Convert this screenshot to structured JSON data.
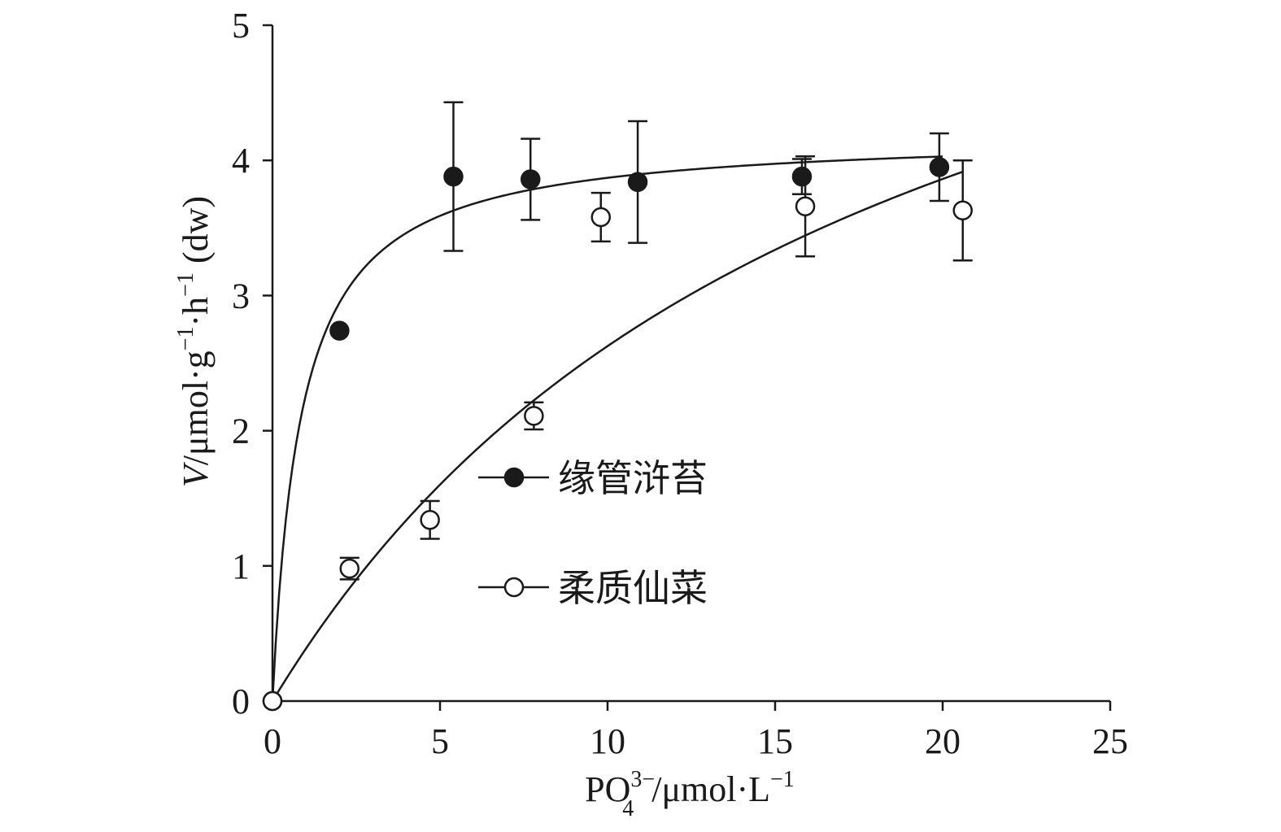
{
  "chart_data": {
    "type": "scatter",
    "title": "",
    "xlabel": {
      "prefix": "PO",
      "sup": "3−",
      "sub": "4",
      "suffix": "/μmol·L",
      "suffix_sup": "−1"
    },
    "ylabel": {
      "italic": "V",
      "parts": [
        {
          "text": "/μmol·g",
          "sup": "−1"
        },
        {
          "text": "·h",
          "sup": "−1"
        },
        {
          "text": " (dw)",
          "sup": ""
        }
      ]
    },
    "xlim": [
      0,
      25
    ],
    "ylim": [
      0,
      5
    ],
    "xticks": [
      0,
      5,
      10,
      15,
      20,
      25
    ],
    "yticks": [
      0,
      1,
      2,
      3,
      4,
      5
    ],
    "grid": false,
    "legend_position": "center",
    "colors": {
      "ink": "#1a1a1a",
      "background": "#ffffff"
    },
    "series": [
      {
        "name": "缘管浒苔",
        "marker": "filled-circle",
        "points": [
          {
            "x": 0,
            "y": 0,
            "err": 0
          },
          {
            "x": 2.0,
            "y": 2.74,
            "err": 0
          },
          {
            "x": 5.4,
            "y": 3.88,
            "err": 0.55
          },
          {
            "x": 7.7,
            "y": 3.86,
            "err": 0.3
          },
          {
            "x": 10.9,
            "y": 3.84,
            "err": 0.45
          },
          {
            "x": 15.8,
            "y": 3.88,
            "err": 0.13
          },
          {
            "x": 19.9,
            "y": 3.95,
            "err": 0.25
          }
        ],
        "fit": {
          "model": "michaelis-menten",
          "vmax": 4.2,
          "km": 0.85,
          "x_range": [
            0,
            20
          ]
        }
      },
      {
        "name": "柔质仙菜",
        "marker": "open-circle",
        "points": [
          {
            "x": 0,
            "y": 0,
            "err": 0
          },
          {
            "x": 2.3,
            "y": 0.98,
            "err": 0.08
          },
          {
            "x": 4.7,
            "y": 1.34,
            "err": 0.14
          },
          {
            "x": 7.8,
            "y": 2.11,
            "err": 0.1
          },
          {
            "x": 9.8,
            "y": 3.58,
            "err": 0.18
          },
          {
            "x": 15.9,
            "y": 3.66,
            "err": 0.37
          },
          {
            "x": 20.6,
            "y": 3.63,
            "err": 0.37
          }
        ],
        "fit": {
          "model": "michaelis-menten",
          "vmax": 7.3,
          "km": 17.8,
          "x_range": [
            0,
            20.6
          ]
        }
      }
    ]
  }
}
